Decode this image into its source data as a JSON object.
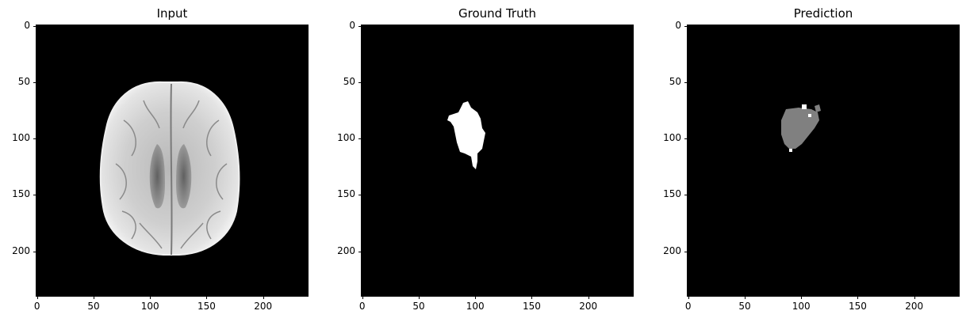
{
  "panels": [
    {
      "title": "Input",
      "x_ticks": [
        "0",
        "50",
        "100",
        "150",
        "200"
      ],
      "y_ticks": [
        "0",
        "50",
        "100",
        "150",
        "200"
      ],
      "image": "brain-mri-axial-slice"
    },
    {
      "title": "Ground Truth",
      "x_ticks": [
        "0",
        "50",
        "100",
        "150",
        "200"
      ],
      "y_ticks": [
        "0",
        "50",
        "100",
        "150",
        "200"
      ],
      "image": "tumor-segmentation-mask",
      "mask_color": "#ffffff"
    },
    {
      "title": "Prediction",
      "x_ticks": [
        "0",
        "50",
        "100",
        "150",
        "200"
      ],
      "y_ticks": [
        "0",
        "50",
        "100",
        "150",
        "200"
      ],
      "image": "predicted-segmentation-mask",
      "mask_color": "#808080"
    }
  ],
  "colors": {
    "background": "#000000",
    "ground_truth": "#ffffff",
    "prediction": "#808080"
  }
}
